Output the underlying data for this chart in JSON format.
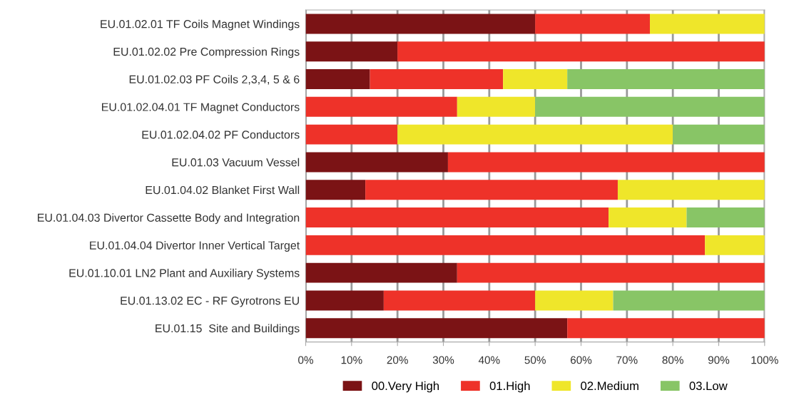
{
  "chart_data": {
    "type": "bar",
    "orientation": "horizontal",
    "stacked": true,
    "categories": [
      "EU.01.02.01 TF Coils Magnet Windings",
      "EU.01.02.02 Pre Compression Rings",
      "EU.01.02.03 PF Coils 2,3,4, 5 & 6",
      "EU.01.02.04.01 TF Magnet Conductors",
      "EU.01.02.04.02 PF Conductors",
      "EU.01.03 Vacuum Vessel",
      "EU.01.04.02 Blanket First Wall",
      "EU.01.04.03 Divertor Cassette Body and Integration",
      "EU.01.04.04 Divertor Inner Vertical Target",
      "EU.01.10.01 LN2 Plant and Auxiliary Systems",
      "EU.01.13.02 EC - RF Gyrotrons EU",
      "EU.01.15  Site and Buildings"
    ],
    "series": [
      {
        "name": "00.Very High",
        "color": "#7b1315",
        "values": [
          50,
          20,
          14,
          0,
          0,
          31,
          13,
          0,
          0,
          33,
          17,
          57
        ]
      },
      {
        "name": "01.High",
        "color": "#ee3229",
        "values": [
          25,
          80,
          29,
          33,
          20,
          69,
          55,
          66,
          87,
          67,
          33,
          43
        ]
      },
      {
        "name": "02.Medium",
        "color": "#efe62a",
        "values": [
          25,
          0,
          14,
          17,
          60,
          0,
          32,
          17,
          13,
          0,
          17,
          0
        ]
      },
      {
        "name": "03.Low",
        "color": "#88c566",
        "values": [
          0,
          0,
          43,
          50,
          20,
          0,
          0,
          17,
          0,
          0,
          33,
          0
        ]
      }
    ],
    "xlim": [
      0,
      100
    ],
    "xticks": [
      {
        "value": 0,
        "label": "0%"
      },
      {
        "value": 10,
        "label": "10%"
      },
      {
        "value": 20,
        "label": "20%"
      },
      {
        "value": 30,
        "label": "30%"
      },
      {
        "value": 40,
        "label": "40%"
      },
      {
        "value": 50,
        "label": "50%"
      },
      {
        "value": 60,
        "label": "60%"
      },
      {
        "value": 70,
        "label": "70%"
      },
      {
        "value": 80,
        "label": "80%"
      },
      {
        "value": 90,
        "label": "90%"
      },
      {
        "value": 100,
        "label": "100%"
      }
    ],
    "grid": "x",
    "legend": "bottom"
  }
}
